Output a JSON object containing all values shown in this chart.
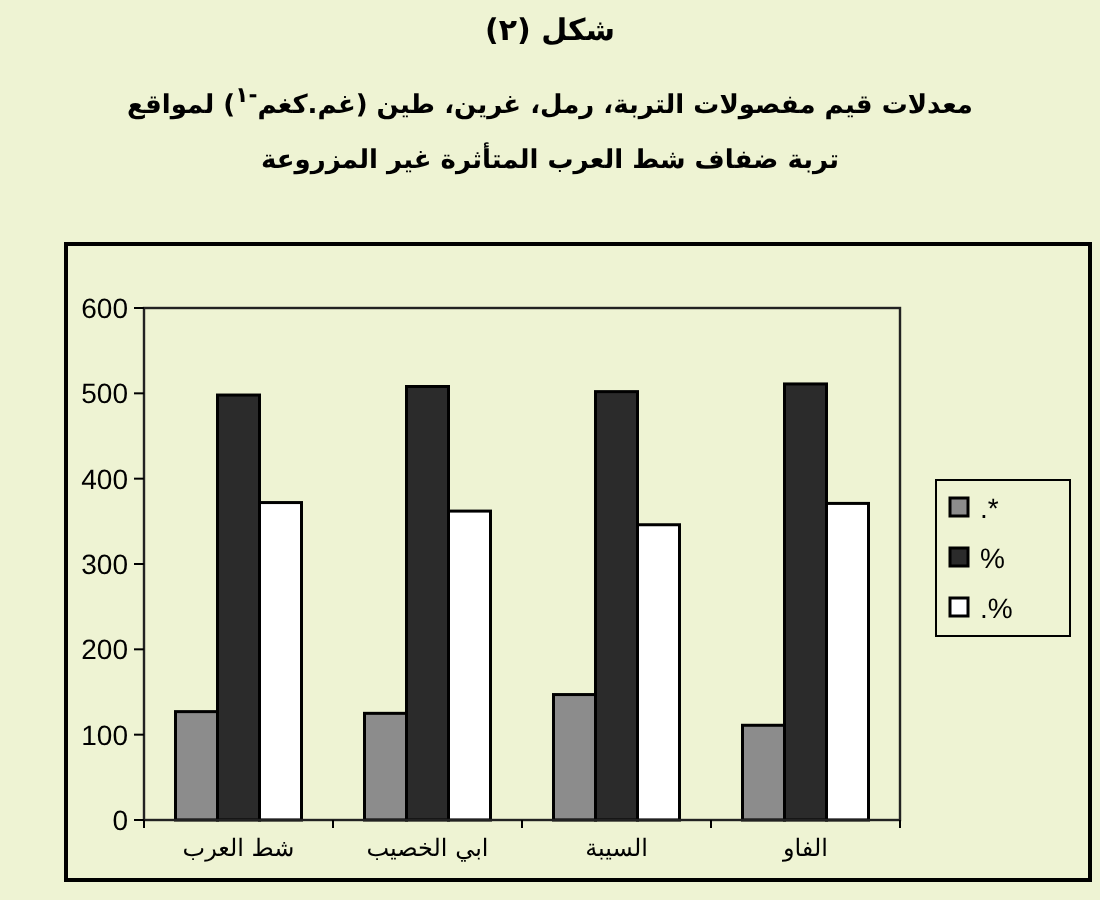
{
  "chart_data": {
    "type": "bar",
    "title": "شكل (٢)",
    "subtitle": "معدلات قيم مفصولات التربة، رمل، غرين، طين (غم.كغم$^{-١}$) لمواقع تربة ضفاف شط العرب المتأثرة غير المزروعة",
    "categories": [
      "شط العرب",
      "ابي الخصيب",
      "السيبة",
      "الفاو"
    ],
    "series": [
      {
        "name": ".*",
        "color": "#8c8c8c",
        "values": [
          127,
          125,
          147,
          111
        ]
      },
      {
        "name": "%",
        "color": "#2b2b2b",
        "values": [
          498,
          508,
          502,
          511
        ]
      },
      {
        "name": ".%",
        "color": "#ffffff",
        "values": [
          372,
          362,
          346,
          371
        ]
      }
    ],
    "ylim": [
      0,
      600
    ],
    "yticks": [
      0,
      100,
      200,
      300,
      400,
      500,
      600
    ],
    "legend": "right"
  }
}
